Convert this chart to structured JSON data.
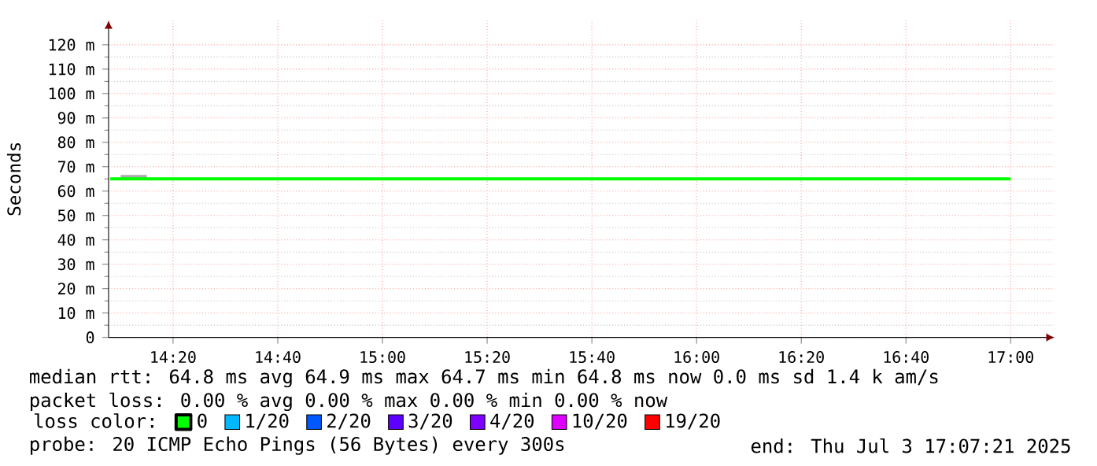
{
  "chart_data": {
    "type": "step",
    "ylabel": "Seconds",
    "legend_title": "loss color:",
    "legend": "bottom left",
    "grid": true,
    "xlim": [
      14.128,
      17.14
    ],
    "xticks": [
      {
        "value": 14.3333,
        "label": "14:20"
      },
      {
        "value": 14.6667,
        "label": "14:40"
      },
      {
        "value": 15,
        "label": "15:00"
      },
      {
        "value": 15.3333,
        "label": "15:20"
      },
      {
        "value": 15.6667,
        "label": "15:40"
      },
      {
        "value": 16,
        "label": "16:00"
      },
      {
        "value": 16.3333,
        "label": "16:20"
      },
      {
        "value": 16.6667,
        "label": "16:40"
      },
      {
        "value": 17,
        "label": "17:00"
      }
    ],
    "ylim": [
      0,
      130
    ],
    "yticks": [
      0,
      {
        "value": 10,
        "label": "10 m"
      },
      {
        "value": 20,
        "label": "20 m"
      },
      {
        "value": 30,
        "label": "30 m"
      },
      {
        "value": 40,
        "label": "40 m"
      },
      {
        "value": 50,
        "label": "50 m"
      },
      {
        "value": 60,
        "label": "60 m"
      },
      {
        "value": 70,
        "label": "70 m"
      },
      {
        "value": 80,
        "label": "80 m"
      },
      {
        "value": 90,
        "label": "90 m"
      },
      {
        "value": 100,
        "label": "100 m"
      },
      {
        "value": 110,
        "label": "110 m"
      },
      {
        "value": 120,
        "label": "120 m"
      }
    ],
    "series": [
      {
        "color": "#aaaaaa",
        "x": [
          14.1667,
          14.25
        ],
        "values": [
          66,
          66
        ]
      },
      {
        "name": "0",
        "color": "#00ff00",
        "x": [
          14.1333,
          14.1667,
          14.25,
          14.3333,
          14.4167,
          14.5,
          14.5833,
          14.6667,
          14.75,
          14.8333,
          14.9167,
          15,
          15.0833,
          15.1667,
          15.25,
          15.3333,
          15.4167,
          15.5,
          15.5833,
          15.6667,
          15.75,
          15.8333,
          15.9167,
          16,
          16.0833,
          16.1667,
          16.25,
          16.3333,
          16.4167,
          16.5,
          16.5833,
          16.6667,
          16.75,
          16.8333,
          16.9167,
          17
        ],
        "values": [
          65,
          65,
          65,
          65,
          65,
          65,
          65,
          65,
          65,
          65,
          65,
          65,
          65,
          65,
          65,
          65,
          65,
          65,
          65,
          65,
          65,
          65,
          65,
          65,
          65,
          65,
          65,
          65,
          65,
          65,
          65,
          65,
          65,
          65,
          65,
          65
        ]
      },
      {
        "name": "1/20",
        "color": "#00b8ff",
        "values": [
          null
        ]
      },
      {
        "name": "2/20",
        "color": "#0059ff",
        "values": [
          null
        ]
      },
      {
        "name": "3/20",
        "color": "#5e00ff",
        "values": [
          null
        ]
      },
      {
        "name": "4/20",
        "color": "#7e00ff",
        "values": [
          null
        ]
      },
      {
        "name": "10/20",
        "color": "#dd00ff",
        "values": [
          null
        ]
      },
      {
        "name": "19/20",
        "color": "#ff0000",
        "values": [
          null
        ]
      }
    ],
    "annotations": [
      "median rtt:  64.8 ms avg  64.9 ms max  64.7 ms min  64.8 ms now  0.0 ms sd  1.4 k am/s",
      "packet loss: 0.00 % avg  0.00 % max  0.00 % min  0.00 % now",
      "probe:       20 ICMP Echo Pings (56 Bytes) every 300s",
      "end: Thu Jul  3 17:07:21 2025"
    ]
  }
}
